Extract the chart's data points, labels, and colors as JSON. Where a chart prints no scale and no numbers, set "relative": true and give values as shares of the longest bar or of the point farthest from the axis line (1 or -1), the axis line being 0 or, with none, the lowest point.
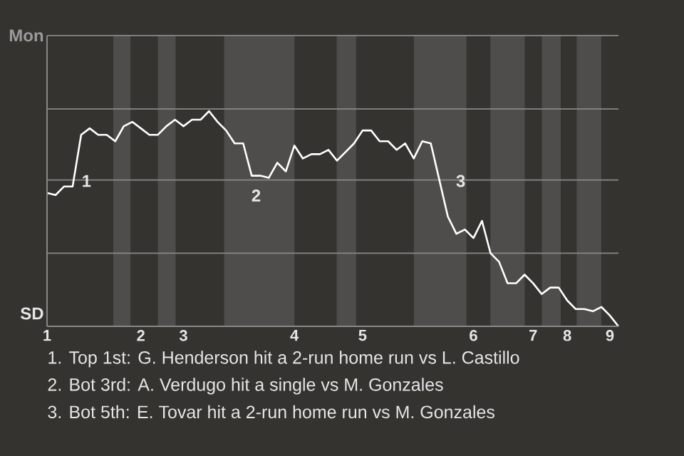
{
  "chart_data": {
    "type": "line",
    "relative": true,
    "categories": [
      "1",
      null,
      null,
      null,
      null,
      null,
      null,
      null,
      null,
      null,
      null,
      "2",
      null,
      null,
      null,
      null,
      "3",
      null,
      null,
      null,
      null,
      null,
      null,
      null,
      null,
      null,
      null,
      null,
      null,
      "4",
      null,
      null,
      null,
      null,
      null,
      null,
      null,
      "5",
      null,
      null,
      null,
      null,
      null,
      null,
      null,
      null,
      null,
      null,
      null,
      null,
      "6",
      null,
      null,
      null,
      null,
      null,
      null,
      "7",
      null,
      null,
      null,
      "8",
      null,
      null,
      null,
      null,
      "9",
      null
    ],
    "series": [
      {
        "color": "#ffffff",
        "values": [
          0.62,
          0.61,
          0.65,
          0.65,
          0.89,
          0.92,
          0.89,
          0.89,
          0.86,
          0.93,
          0.95,
          0.92,
          0.89,
          0.89,
          0.93,
          0.96,
          0.93,
          0.96,
          0.96,
          1,
          0.95,
          0.91,
          0.85,
          0.85,
          0.7,
          0.7,
          0.69,
          0.76,
          0.72,
          0.84,
          0.78,
          0.8,
          0.8,
          0.82,
          0.77,
          0.81,
          0.85,
          0.91,
          0.91,
          0.86,
          0.86,
          0.82,
          0.85,
          0.78,
          0.86,
          0.85,
          0.68,
          0.51,
          0.43,
          0.45,
          0.41,
          0.49,
          0.34,
          0.3,
          0.2,
          0.2,
          0.24,
          0.2,
          0.15,
          0.18,
          0.18,
          0.12,
          0.08,
          0.08,
          0.07,
          0.09,
          0.05,
          0
        ]
      }
    ],
    "ref_lines": [
      {
        "axis": "y",
        "value": 0.34,
        "color": "#8a8886"
      },
      {
        "axis": "y",
        "value": 0.68,
        "color": "#8a8886"
      },
      {
        "axis": "y",
        "value": 1.01,
        "color": "#8a8886"
      }
    ],
    "annotations": [
      "Mon",
      "SD",
      "1",
      "2",
      "3",
      "1. Top 1st: G. Henderson hit a 2-run home run vs L. Castillo",
      "2. Bot 3rd: A. Verdugo hit a single vs M. Gonzales",
      "3. Bot 5th: E. Tovar hit a 2-run home run vs M. Gonzales"
    ]
  }
}
